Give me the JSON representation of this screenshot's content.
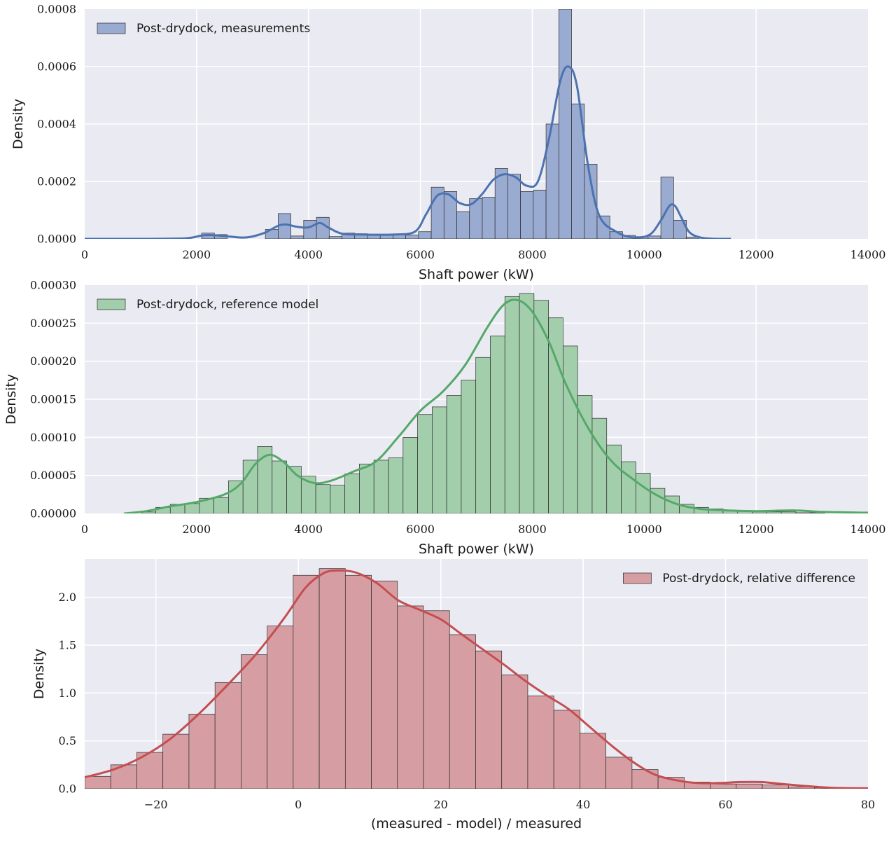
{
  "chart_data": [
    {
      "type": "bar",
      "legend": "Post-drydock, measurements",
      "legend_position": "top-left",
      "xlabel": "Shaft power (kW)",
      "ylabel": "Density",
      "xlim": [
        0,
        14000
      ],
      "ylim": [
        0,
        0.0008
      ],
      "grid": true,
      "xticks": [
        0,
        2000,
        4000,
        6000,
        8000,
        10000,
        12000,
        14000
      ],
      "xtick_labels": [
        "0",
        "2000",
        "4000",
        "6000",
        "8000",
        "10000",
        "12000",
        "14000"
      ],
      "yticks": [
        0,
        0.0002,
        0.0004,
        0.0006,
        0.0008
      ],
      "ytick_labels": [
        "0.0000",
        "0.0002",
        "0.0004",
        "0.0006",
        "0.0008"
      ],
      "colors": {
        "bar": "#9aabd1",
        "edge": "#2b2b2b",
        "line": "#4c72b0"
      },
      "bin_start": 2090,
      "bin_width": 228,
      "values": [
        2e-05,
        1.5e-05,
        0,
        0,
        0,
        3.3e-05,
        8.8e-05,
        1e-05,
        6.5e-05,
        7.5e-05,
        8e-06,
        2e-05,
        1.8e-05,
        1.2e-05,
        1.5e-05,
        1.5e-05,
        1.3e-05,
        2.5e-05,
        0.00018,
        0.000165,
        9.5e-05,
        0.00014,
        0.000145,
        0.000245,
        0.000225,
        0.000165,
        0.00017,
        0.0004,
        0.0008,
        0.00047,
        0.00026,
        8e-05,
        2.5e-05,
        1.2e-05,
        8e-06,
        1e-05,
        0.000215,
        6.5e-05,
        6e-06
      ],
      "kde_x": [
        0,
        1000,
        1800,
        2100,
        2300,
        2600,
        2900,
        3200,
        3450,
        3600,
        3800,
        4000,
        4200,
        4350,
        4600,
        5000,
        5500,
        5900,
        6100,
        6300,
        6500,
        6700,
        6900,
        7100,
        7300,
        7500,
        7700,
        7900,
        8100,
        8300,
        8500,
        8650,
        8800,
        9000,
        9200,
        9500,
        9800,
        10100,
        10300,
        10450,
        10550,
        10650,
        10800,
        11000,
        11300,
        11550
      ],
      "kde_y": [
        0,
        0,
        2e-06,
        1.2e-05,
        1.3e-05,
        8e-06,
        5e-06,
        2e-05,
        4.5e-05,
        5e-05,
        4.2e-05,
        4e-05,
        5.5e-05,
        4e-05,
        1.8e-05,
        1.5e-05,
        1.5e-05,
        2.5e-05,
        8.5e-05,
        0.00015,
        0.000155,
        0.000125,
        0.00012,
        0.000155,
        0.000205,
        0.000225,
        0.000215,
        0.000185,
        0.0002,
        0.00035,
        0.00055,
        0.0006,
        0.00053,
        0.00025,
        8e-05,
        2.5e-05,
        5e-06,
        1.5e-05,
        6.5e-05,
        0.000115,
        0.000115,
        8e-05,
        2.5e-05,
        5e-06,
        0,
        0
      ]
    },
    {
      "type": "bar",
      "legend": "Post-drydock, reference model",
      "legend_position": "top-left",
      "xlabel": "Shaft power (kW)",
      "ylabel": "Density",
      "xlim": [
        0,
        14000
      ],
      "ylim": [
        0,
        0.0003
      ],
      "grid": true,
      "xticks": [
        0,
        2000,
        4000,
        6000,
        8000,
        10000,
        12000,
        14000
      ],
      "xtick_labels": [
        "0",
        "2000",
        "4000",
        "6000",
        "8000",
        "10000",
        "12000",
        "14000"
      ],
      "yticks": [
        0,
        5e-05,
        0.0001,
        0.00015,
        0.0002,
        0.00025,
        0.0003
      ],
      "ytick_labels": [
        "0.00000",
        "0.00005",
        "0.00010",
        "0.00015",
        "0.00020",
        "0.00025",
        "0.00030"
      ],
      "colors": {
        "bar": "#a3ceac",
        "edge": "#2b2b2b",
        "line": "#55a868"
      },
      "bin_start": 1010,
      "bin_width": 260,
      "values": [
        2e-06,
        8e-06,
        1.2e-05,
        1.3e-05,
        2e-05,
        2.1e-05,
        4.3e-05,
        7e-05,
        8.8e-05,
        6.9e-05,
        6.2e-05,
        4.9e-05,
        3.8e-05,
        3.7e-05,
        5.2e-05,
        6.5e-05,
        7e-05,
        7.3e-05,
        0.0001,
        0.00013,
        0.00014,
        0.000155,
        0.000175,
        0.000205,
        0.000233,
        0.000285,
        0.000289,
        0.00028,
        0.000257,
        0.00022,
        0.000155,
        0.000125,
        9e-05,
        6.8e-05,
        5.3e-05,
        3.3e-05,
        2.3e-05,
        1.2e-05,
        8e-06,
        6e-06,
        4e-06,
        3e-06,
        2e-06,
        2e-06,
        2e-06,
        1e-06,
        1e-06
      ],
      "kde_x": [
        700,
        1100,
        1500,
        2000,
        2500,
        2800,
        3050,
        3300,
        3550,
        3800,
        4100,
        4400,
        4800,
        5200,
        5600,
        6000,
        6400,
        6800,
        7200,
        7500,
        7750,
        8000,
        8300,
        8600,
        9000,
        9400,
        9800,
        10200,
        10600,
        11000,
        11500,
        12000,
        12700,
        13200,
        14000
      ],
      "kde_y": [
        0,
        3e-06,
        9e-06,
        1.5e-05,
        2.5e-05,
        4e-05,
        6.5e-05,
        7.7e-05,
        6.8e-05,
        5e-05,
        4e-05,
        4.3e-05,
        5.5e-05,
        6.8e-05,
        0.0001,
        0.000135,
        0.00016,
        0.000195,
        0.000245,
        0.000275,
        0.00028,
        0.000265,
        0.000225,
        0.00017,
        0.000112,
        7e-05,
        4.5e-05,
        2.5e-05,
        1.2e-05,
        6e-06,
        4e-06,
        3e-06,
        4e-06,
        2e-06,
        1e-06
      ]
    },
    {
      "type": "bar",
      "legend": "Post-drydock, relative difference",
      "legend_position": "top-right",
      "xlabel": "(measured - model) / measured",
      "ylabel": "Density",
      "xlim": [
        -30,
        80
      ],
      "ylim": [
        0,
        2.4
      ],
      "grid": true,
      "xticks": [
        -20,
        0,
        20,
        40,
        60,
        80
      ],
      "xtick_labels": [
        "−20",
        "0",
        "20",
        "40",
        "60",
        "80"
      ],
      "yticks": [
        0,
        0.5,
        1.0,
        1.5,
        2.0
      ],
      "ytick_labels": [
        "0.0",
        "0.5",
        "1.0",
        "1.5",
        "2.0"
      ],
      "colors": {
        "bar": "#d69ea3",
        "edge": "#2b2b2b",
        "line": "#c44e52"
      },
      "bin_start": -30,
      "bin_width": 3.66,
      "values": [
        0.13,
        0.25,
        0.38,
        0.57,
        0.78,
        1.11,
        1.4,
        1.7,
        2.23,
        2.3,
        2.23,
        2.17,
        1.91,
        1.86,
        1.61,
        1.44,
        1.19,
        0.97,
        0.82,
        0.58,
        0.33,
        0.2,
        0.12,
        0.07,
        0.05,
        0.05,
        0.04,
        0.02,
        0.01,
        0.01
      ],
      "kde_x": [
        -30,
        -26,
        -22,
        -18,
        -14,
        -10,
        -6,
        -2,
        1,
        3.5,
        5.5,
        8,
        11,
        14,
        17,
        20,
        23,
        26,
        29,
        32,
        35,
        38,
        41,
        44,
        47,
        50,
        53,
        56,
        59,
        62,
        65,
        68,
        71,
        75,
        80
      ],
      "kde_y": [
        0.12,
        0.2,
        0.33,
        0.52,
        0.78,
        1.08,
        1.4,
        1.78,
        2.1,
        2.25,
        2.28,
        2.26,
        2.15,
        1.97,
        1.87,
        1.77,
        1.61,
        1.45,
        1.29,
        1.12,
        0.97,
        0.83,
        0.64,
        0.45,
        0.28,
        0.15,
        0.09,
        0.06,
        0.06,
        0.07,
        0.07,
        0.05,
        0.03,
        0.01,
        0.005
      ]
    }
  ]
}
